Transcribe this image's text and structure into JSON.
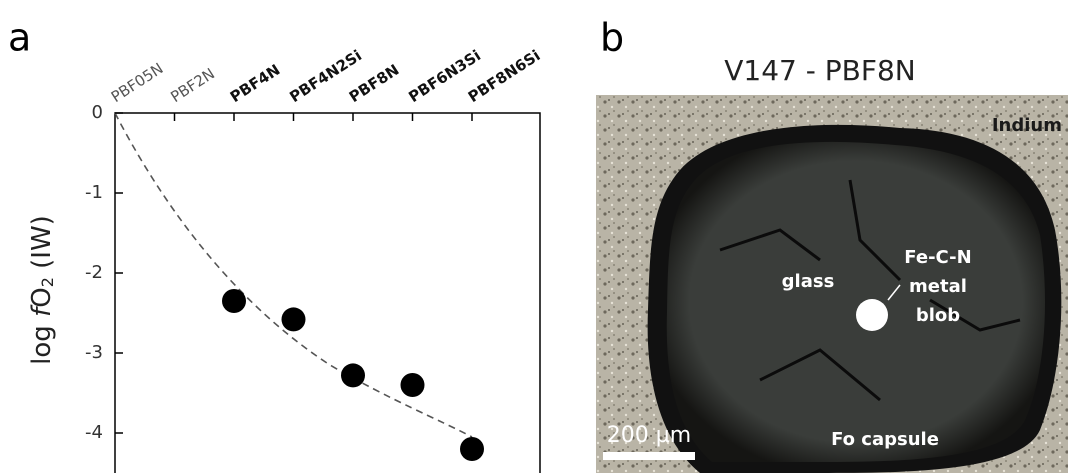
{
  "chart_data": {
    "type": "scatter",
    "panel_label": "a",
    "y_label": {
      "prefix": "log ",
      "italic": "f",
      "base": "O",
      "sub": "2",
      "suffix": " (IW)"
    },
    "categories": [
      "PBF05N",
      "PBF2N",
      "PBF4N",
      "PBF4N2Si",
      "PBF8N",
      "PBF6N3Si",
      "PBF8N6Si"
    ],
    "label_weights": [
      "normal",
      "normal",
      "bold",
      "bold",
      "bold",
      "bold",
      "bold"
    ],
    "values": [
      null,
      null,
      -2.35,
      -2.58,
      -3.28,
      -3.4,
      -4.2
    ],
    "color": "#000000",
    "ylim": [
      -4.5,
      0
    ],
    "yticks": [
      0,
      -1,
      -2,
      -3,
      -4
    ]
  },
  "image_panel": {
    "panel_label": "b",
    "title": "V147 - PBF8N",
    "labels": {
      "indium": "Indium",
      "metal": [
        "Fe-C-N",
        "metal",
        "blob"
      ],
      "glass": "glass",
      "capsule": "Fo capsule",
      "scale": "200 µm"
    }
  }
}
